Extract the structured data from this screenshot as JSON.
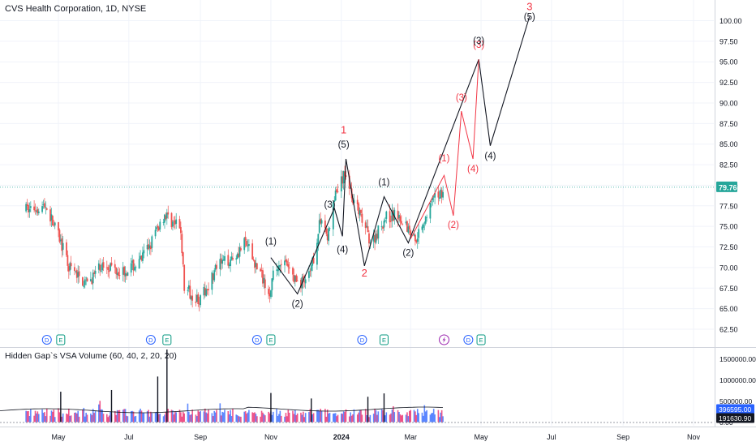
{
  "header": {
    "title": "CVS Health Corporation, 1D, NYSE"
  },
  "indicator": {
    "title": "Hidden Gap`s VSA Volume (60, 40, 2, 20, 20)",
    "badges": [
      "396595.00",
      "191630.90"
    ],
    "y_ticks": [
      "1500000.00",
      "1000000.00",
      "500000.00",
      "0.00"
    ]
  },
  "chart_data": {
    "type": "candlestick",
    "title": "CVS Health Corporation, 1D, NYSE",
    "ylim": [
      61,
      101.5
    ],
    "y_ticks": [
      "100.00",
      "97.50",
      "95.00",
      "92.50",
      "90.00",
      "87.50",
      "85.00",
      "82.50",
      "80.00",
      "77.50",
      "75.00",
      "72.50",
      "70.00",
      "67.50",
      "65.00",
      "62.50"
    ],
    "x_ticks": [
      "May",
      "Jul",
      "Sep",
      "Nov",
      "2024",
      "Mar",
      "May",
      "Jul",
      "Sep",
      "Nov"
    ],
    "last_price": "79.76",
    "colors": {
      "up": "#26a69a",
      "down": "#ef5350",
      "price_line": "#26a69a",
      "projection_black": "#131722",
      "projection_red": "#f23645"
    },
    "series_anchors": [
      {
        "date": "2023-04-01",
        "close": 77.0
      },
      {
        "date": "2023-04-20",
        "close": 77.5
      },
      {
        "date": "2023-05-02",
        "close": 73.5
      },
      {
        "date": "2023-05-10",
        "close": 70.0
      },
      {
        "date": "2023-05-25",
        "close": 68.0
      },
      {
        "date": "2023-06-10",
        "close": 70.5
      },
      {
        "date": "2023-06-25",
        "close": 69.5
      },
      {
        "date": "2023-07-10",
        "close": 70.5
      },
      {
        "date": "2023-07-20",
        "close": 73.0
      },
      {
        "date": "2023-08-01",
        "close": 76.5
      },
      {
        "date": "2023-08-15",
        "close": 74.5
      },
      {
        "date": "2023-08-18",
        "close": 67.5
      },
      {
        "date": "2023-09-01",
        "close": 66.0
      },
      {
        "date": "2023-09-15",
        "close": 70.0
      },
      {
        "date": "2023-10-01",
        "close": 71.5
      },
      {
        "date": "2023-10-10",
        "close": 73.0
      },
      {
        "date": "2023-10-20",
        "close": 70.0
      },
      {
        "date": "2023-11-01",
        "close": 67.0
      },
      {
        "date": "2023-11-03",
        "close": 69.0
      },
      {
        "date": "2023-11-10",
        "close": 71.0
      },
      {
        "date": "2023-11-25",
        "close": 68.0
      },
      {
        "date": "2023-12-05",
        "close": 69.0
      },
      {
        "date": "2023-12-15",
        "close": 76.5
      },
      {
        "date": "2023-12-20",
        "close": 73.5
      },
      {
        "date": "2023-12-27",
        "close": 79.0
      },
      {
        "date": "2024-01-05",
        "close": 81.5
      },
      {
        "date": "2024-01-10",
        "close": 79.0
      },
      {
        "date": "2024-01-15",
        "close": 77.0
      },
      {
        "date": "2024-01-27",
        "close": 73.0
      },
      {
        "date": "2024-02-08",
        "close": 76.0
      },
      {
        "date": "2024-02-20",
        "close": 76.5
      },
      {
        "date": "2024-03-05",
        "close": 73.5
      },
      {
        "date": "2024-03-10",
        "close": 75.0
      },
      {
        "date": "2024-03-20",
        "close": 78.0
      },
      {
        "date": "2024-03-31",
        "close": 79.76
      }
    ],
    "black_projection": [
      {
        "date": "2023-11-01",
        "price": 71.2
      },
      {
        "date": "2023-11-24",
        "price": 66.8
      },
      {
        "date": "2023-12-26",
        "price": 77.2
      },
      {
        "date": "2024-01-02",
        "price": 73.8
      },
      {
        "date": "2024-01-05",
        "price": 83.2
      },
      {
        "date": "2024-01-21",
        "price": 70.2
      },
      {
        "date": "2024-02-07",
        "price": 78.6
      },
      {
        "date": "2024-02-28",
        "price": 73.0
      },
      {
        "date": "2024-04-29",
        "price": 95.3
      },
      {
        "date": "2024-05-09",
        "price": 84.8
      },
      {
        "date": "2024-06-12",
        "price": 100.5
      }
    ],
    "red_projection": [
      {
        "date": "2024-03-01",
        "price": 73.5
      },
      {
        "date": "2024-03-30",
        "price": 81.2
      },
      {
        "date": "2024-04-07",
        "price": 76.3
      },
      {
        "date": "2024-04-14",
        "price": 89.0
      },
      {
        "date": "2024-04-24",
        "price": 83.2
      },
      {
        "date": "2024-04-29",
        "price": 95.3
      }
    ],
    "wave_labels": [
      {
        "text": "(1)",
        "date": "2023-11-01",
        "price": 72.8,
        "color": "#131722"
      },
      {
        "text": "(2)",
        "date": "2023-11-24",
        "price": 65.2,
        "color": "#131722"
      },
      {
        "text": "(3)",
        "date": "2023-12-22",
        "price": 77.3,
        "color": "#131722"
      },
      {
        "text": "(4)",
        "date": "2024-01-02",
        "price": 71.8,
        "color": "#131722"
      },
      {
        "text": "(5)",
        "date": "2024-01-03",
        "price": 84.6,
        "color": "#131722"
      },
      {
        "text": "1",
        "date": "2024-01-03",
        "price": 86.3,
        "color": "#f23645"
      },
      {
        "text": "2",
        "date": "2024-01-21",
        "price": 68.9,
        "color": "#f23645"
      },
      {
        "text": "(1)",
        "date": "2024-02-07",
        "price": 80.0,
        "color": "#131722"
      },
      {
        "text": "(2)",
        "date": "2024-02-28",
        "price": 71.4,
        "color": "#131722"
      },
      {
        "text": "(1)",
        "date": "2024-03-30",
        "price": 82.9,
        "color": "#f23645"
      },
      {
        "text": "(2)",
        "date": "2024-04-07",
        "price": 74.8,
        "color": "#f23645"
      },
      {
        "text": "(3)",
        "date": "2024-04-14",
        "price": 90.3,
        "color": "#f23645"
      },
      {
        "text": "(4)",
        "date": "2024-04-24",
        "price": 81.6,
        "color": "#f23645"
      },
      {
        "text": "(3)",
        "date": "2024-04-29",
        "price": 96.7,
        "color": "#f23645"
      },
      {
        "text": "(3)",
        "date": "2024-04-29",
        "price": 97.2,
        "color": "#131722"
      },
      {
        "text": "(4)",
        "date": "2024-05-09",
        "price": 83.2,
        "color": "#131722"
      },
      {
        "text": "(5)",
        "date": "2024-06-12",
        "price": 100.1,
        "color": "#131722"
      },
      {
        "text": "3",
        "date": "2024-06-12",
        "price": 101.3,
        "color": "#f23645"
      }
    ],
    "event_markers": [
      {
        "kind": "D",
        "date": "2023-04-21"
      },
      {
        "kind": "E",
        "date": "2023-05-03"
      },
      {
        "kind": "D",
        "date": "2023-07-20"
      },
      {
        "kind": "E",
        "date": "2023-08-03"
      },
      {
        "kind": "D",
        "date": "2023-10-20"
      },
      {
        "kind": "E",
        "date": "2023-11-01"
      },
      {
        "kind": "D",
        "date": "2024-01-19"
      },
      {
        "kind": "E",
        "date": "2024-02-07"
      },
      {
        "kind": "split",
        "date": "2024-03-30"
      },
      {
        "kind": "D",
        "date": "2024-04-20"
      },
      {
        "kind": "E",
        "date": "2024-05-01"
      }
    ]
  }
}
